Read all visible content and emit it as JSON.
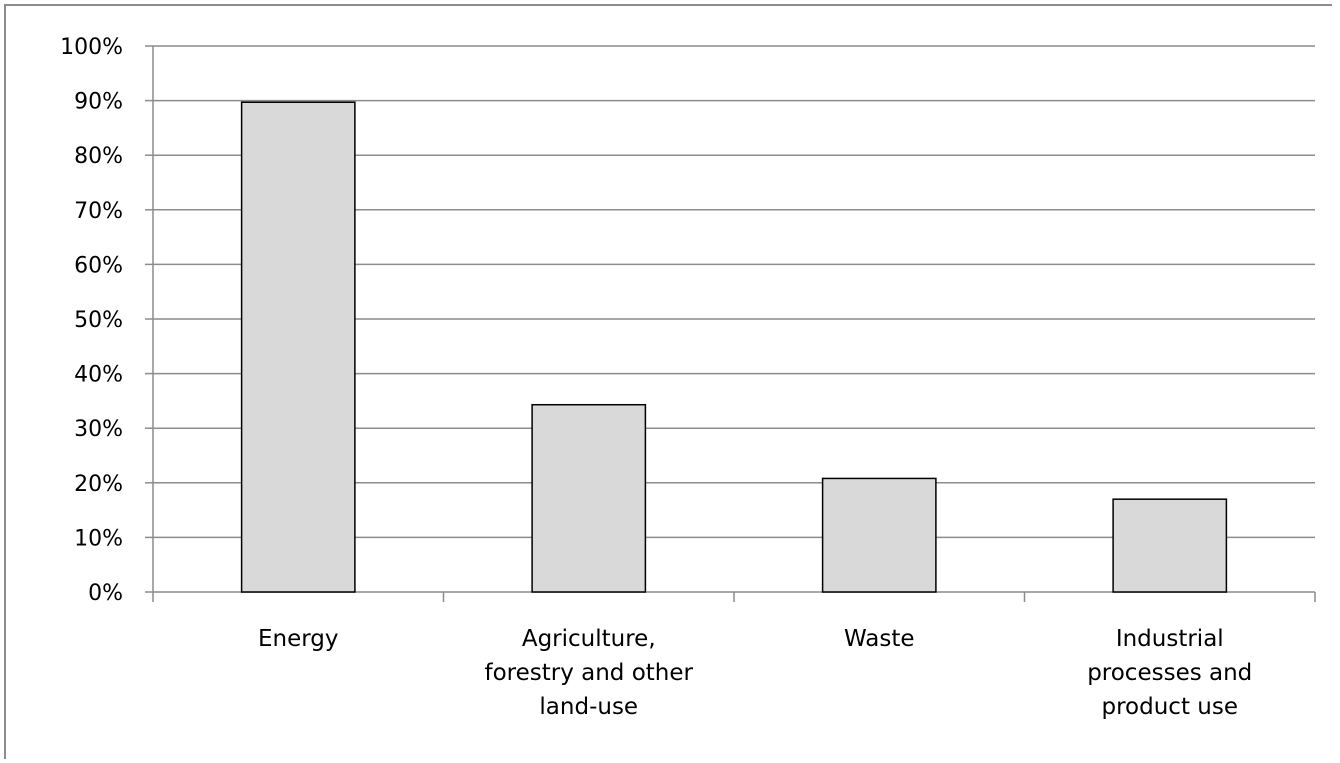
{
  "chart_data": {
    "type": "bar",
    "title": "",
    "xlabel": "",
    "ylabel": "",
    "categories": [
      [
        "Energy"
      ],
      [
        "Agriculture,",
        "forestry and other",
        "land-use"
      ],
      [
        "Waste"
      ],
      [
        "Industrial",
        "processes and",
        "product use"
      ]
    ],
    "values": [
      0.897,
      0.343,
      0.208,
      0.17
    ],
    "ylim": [
      0,
      1
    ],
    "yticks": [
      "0%",
      "10%",
      "20%",
      "30%",
      "40%",
      "50%",
      "60%",
      "70%",
      "80%",
      "90%",
      "100%"
    ],
    "grid": true,
    "legend": "none",
    "colors": {
      "bar_fill": "#d9d9d9",
      "bar_stroke": "#000000",
      "grid": "#8c8c8c",
      "axis": "#8c8c8c"
    }
  }
}
